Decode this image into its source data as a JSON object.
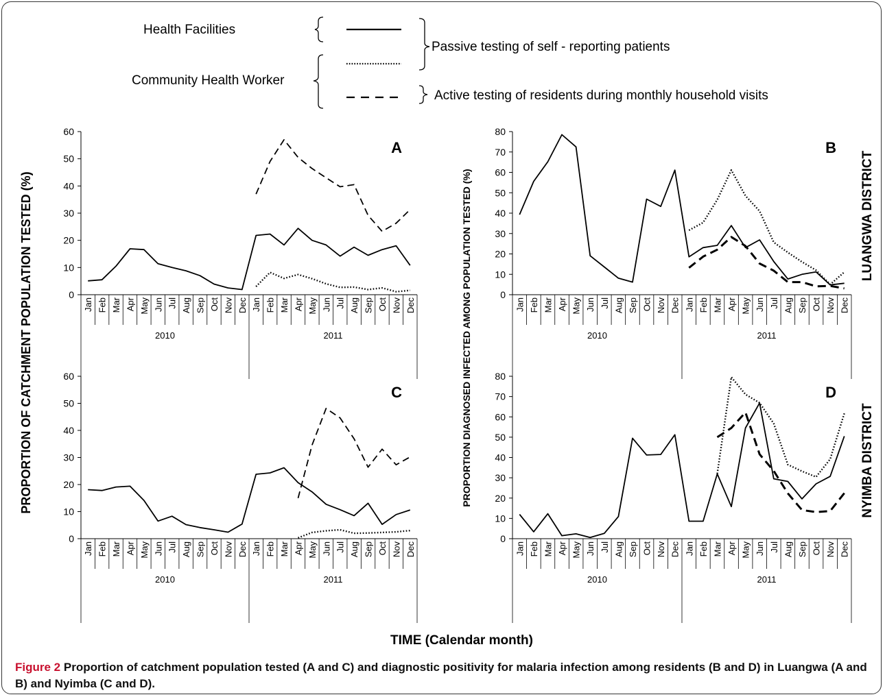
{
  "legend": {
    "health_facilities": "Health  Facilities",
    "chw": "Community Health Worker",
    "passive": "Passive testing of self - reporting patients",
    "active": "Active testing of residents during monthly household visits"
  },
  "axes": {
    "left_ylabel": "PROPORTION  OF  CATCHMENT  POPULATION TESTED (%)",
    "right_ylabel": "PROPORTION  DIAGNOSED INFECTED AMONG POPULATION TESTED (%)",
    "xlabel": "TIME (Calendar month)",
    "luangwa": "LUANGWA DISTRICT",
    "nyimba": "NYIMBA DISTRICT"
  },
  "caption": {
    "label": "Figure 2",
    "text": "Proportion of catchment population tested (A and C) and diagnostic positivity for malaria infection among residents (B and D) in Luangwa (A and B) and Nyimba (C and D)."
  },
  "chart_data": [
    {
      "type": "line",
      "panel": "A",
      "categories": [
        "Jan",
        "Feb",
        "Mar",
        "Apr",
        "May",
        "Jun",
        "Jul",
        "Aug",
        "Sep",
        "Oct",
        "Nov",
        "Dec",
        "Jan",
        "Feb",
        "Mar",
        "Apr",
        "May",
        "Jun",
        "Jul",
        "Aug",
        "Sep",
        "Oct",
        "Nov",
        "Dec"
      ],
      "years": [
        "2010",
        "2011"
      ],
      "ylim": [
        0,
        60
      ],
      "yticks": [
        0,
        10,
        20,
        30,
        40,
        50,
        60
      ],
      "series": [
        {
          "style": "solid",
          "values": [
            5.1,
            5.5,
            10.5,
            16.9,
            16.6,
            11.4,
            10.0,
            8.8,
            7.0,
            3.9,
            2.5,
            1.9,
            21.8,
            22.3,
            18.3,
            24.4,
            20.0,
            18.3,
            14.2,
            17.5,
            14.5,
            16.6,
            18.0,
            10.8
          ]
        },
        {
          "style": "dotted",
          "values": [
            null,
            null,
            null,
            null,
            null,
            null,
            null,
            null,
            null,
            null,
            null,
            null,
            3.0,
            8.2,
            6.0,
            7.4,
            5.9,
            4.0,
            2.7,
            2.8,
            1.9,
            2.5,
            1.1,
            1.6
          ]
        },
        {
          "style": "dashed",
          "values": [
            null,
            null,
            null,
            null,
            null,
            null,
            null,
            null,
            null,
            null,
            null,
            null,
            37.0,
            49.0,
            57.0,
            50.5,
            46.4,
            43.0,
            39.7,
            40.5,
            29.2,
            23.3,
            26.3,
            31.3
          ]
        }
      ]
    },
    {
      "type": "line",
      "panel": "B",
      "categories": [
        "Jan",
        "Feb",
        "Mar",
        "Apr",
        "May",
        "Jun",
        "Jul",
        "Aug",
        "Sep",
        "Oct",
        "Nov",
        "Dec",
        "Jan",
        "Feb",
        "Mar",
        "Apr",
        "May",
        "Jun",
        "Jul",
        "Aug",
        "Sep",
        "Oct",
        "Nov",
        "Dec"
      ],
      "years": [
        "2010",
        "2011"
      ],
      "ylim": [
        0,
        80
      ],
      "yticks": [
        0,
        10,
        20,
        30,
        40,
        50,
        60,
        70,
        80
      ],
      "series": [
        {
          "style": "solid",
          "values": [
            39.3,
            55.6,
            65.2,
            78.5,
            72.5,
            19.1,
            13.6,
            8.1,
            6.2,
            46.9,
            43.3,
            61.1,
            18.6,
            23.1,
            24.2,
            33.9,
            23.1,
            26.9,
            16.3,
            7.7,
            10.0,
            11.2,
            4.8,
            5.6
          ]
        },
        {
          "style": "dotted",
          "values": [
            null,
            null,
            null,
            null,
            null,
            null,
            null,
            null,
            null,
            null,
            null,
            null,
            31.6,
            35.4,
            46.6,
            61.1,
            48.5,
            41.0,
            25.7,
            20.7,
            16.1,
            12.0,
            5.0,
            11.1
          ]
        },
        {
          "style": "dashed-bold",
          "values": [
            null,
            null,
            null,
            null,
            null,
            null,
            null,
            null,
            null,
            null,
            null,
            null,
            13.2,
            18.7,
            22.1,
            28.3,
            23.9,
            15.3,
            11.8,
            6.2,
            6.2,
            4.1,
            4.3,
            3.1
          ]
        }
      ]
    },
    {
      "type": "line",
      "panel": "C",
      "categories": [
        "Jan",
        "Feb",
        "Mar",
        "Apr",
        "May",
        "Jun",
        "Jul",
        "Aug",
        "Sep",
        "Oct",
        "Nov",
        "Dec",
        "Jan",
        "Feb",
        "Mar",
        "Apr",
        "May",
        "Jun",
        "Jul",
        "Aug",
        "Sep",
        "Oct",
        "Nov",
        "Dec"
      ],
      "years": [
        "2010",
        "2011"
      ],
      "ylim": [
        0,
        60
      ],
      "yticks": [
        0,
        10,
        20,
        30,
        40,
        50,
        60
      ],
      "series": [
        {
          "style": "solid",
          "values": [
            18.1,
            17.8,
            19.1,
            19.4,
            14.1,
            6.5,
            8.3,
            5.2,
            4.1,
            3.3,
            2.4,
            5.4,
            23.8,
            24.3,
            26.2,
            20.7,
            17.3,
            12.7,
            10.7,
            8.5,
            13.1,
            5.3,
            8.9,
            10.6
          ]
        },
        {
          "style": "dotted",
          "values": [
            null,
            null,
            null,
            null,
            null,
            null,
            null,
            null,
            null,
            null,
            null,
            null,
            null,
            null,
            null,
            0.3,
            2.3,
            2.9,
            3.3,
            2.0,
            2.1,
            2.3,
            2.5,
            3.0
          ]
        },
        {
          "style": "dashed",
          "values": [
            null,
            null,
            null,
            null,
            null,
            null,
            null,
            null,
            null,
            null,
            null,
            null,
            null,
            null,
            null,
            15.0,
            34.6,
            48.1,
            44.6,
            36.9,
            26.4,
            33.1,
            27.3,
            30.2
          ]
        }
      ]
    },
    {
      "type": "line",
      "panel": "D",
      "categories": [
        "Jan",
        "Feb",
        "Mar",
        "Apr",
        "May",
        "Jun",
        "Jul",
        "Aug",
        "Sep",
        "Oct",
        "Nov",
        "Dec",
        "Jan",
        "Feb",
        "Mar",
        "Apr",
        "May",
        "Jun",
        "Jul",
        "Aug",
        "Sep",
        "Oct",
        "Nov",
        "Dec"
      ],
      "years": [
        "2010",
        "2011"
      ],
      "ylim": [
        0,
        80
      ],
      "yticks": [
        0,
        10,
        20,
        30,
        40,
        50,
        60,
        70,
        80
      ],
      "series": [
        {
          "style": "solid",
          "values": [
            12.0,
            3.4,
            12.3,
            1.5,
            2.4,
            0.6,
            2.6,
            10.9,
            49.5,
            41.2,
            41.5,
            51.2,
            8.6,
            8.6,
            31.9,
            15.8,
            54.5,
            66.8,
            29.5,
            28.2,
            19.6,
            27.0,
            30.7,
            50.5
          ]
        },
        {
          "style": "dotted",
          "values": [
            null,
            null,
            null,
            null,
            null,
            null,
            null,
            null,
            null,
            null,
            null,
            null,
            null,
            null,
            32.0,
            79.6,
            71.1,
            66.9,
            56.7,
            36.5,
            33.2,
            30.4,
            39.2,
            61.7
          ]
        },
        {
          "style": "dashed-bold",
          "values": [
            null,
            null,
            null,
            null,
            null,
            null,
            null,
            null,
            null,
            null,
            null,
            null,
            null,
            null,
            50.0,
            54.5,
            62.2,
            41.6,
            33.4,
            22.3,
            14.1,
            13.1,
            13.6,
            22.4
          ]
        }
      ]
    }
  ]
}
